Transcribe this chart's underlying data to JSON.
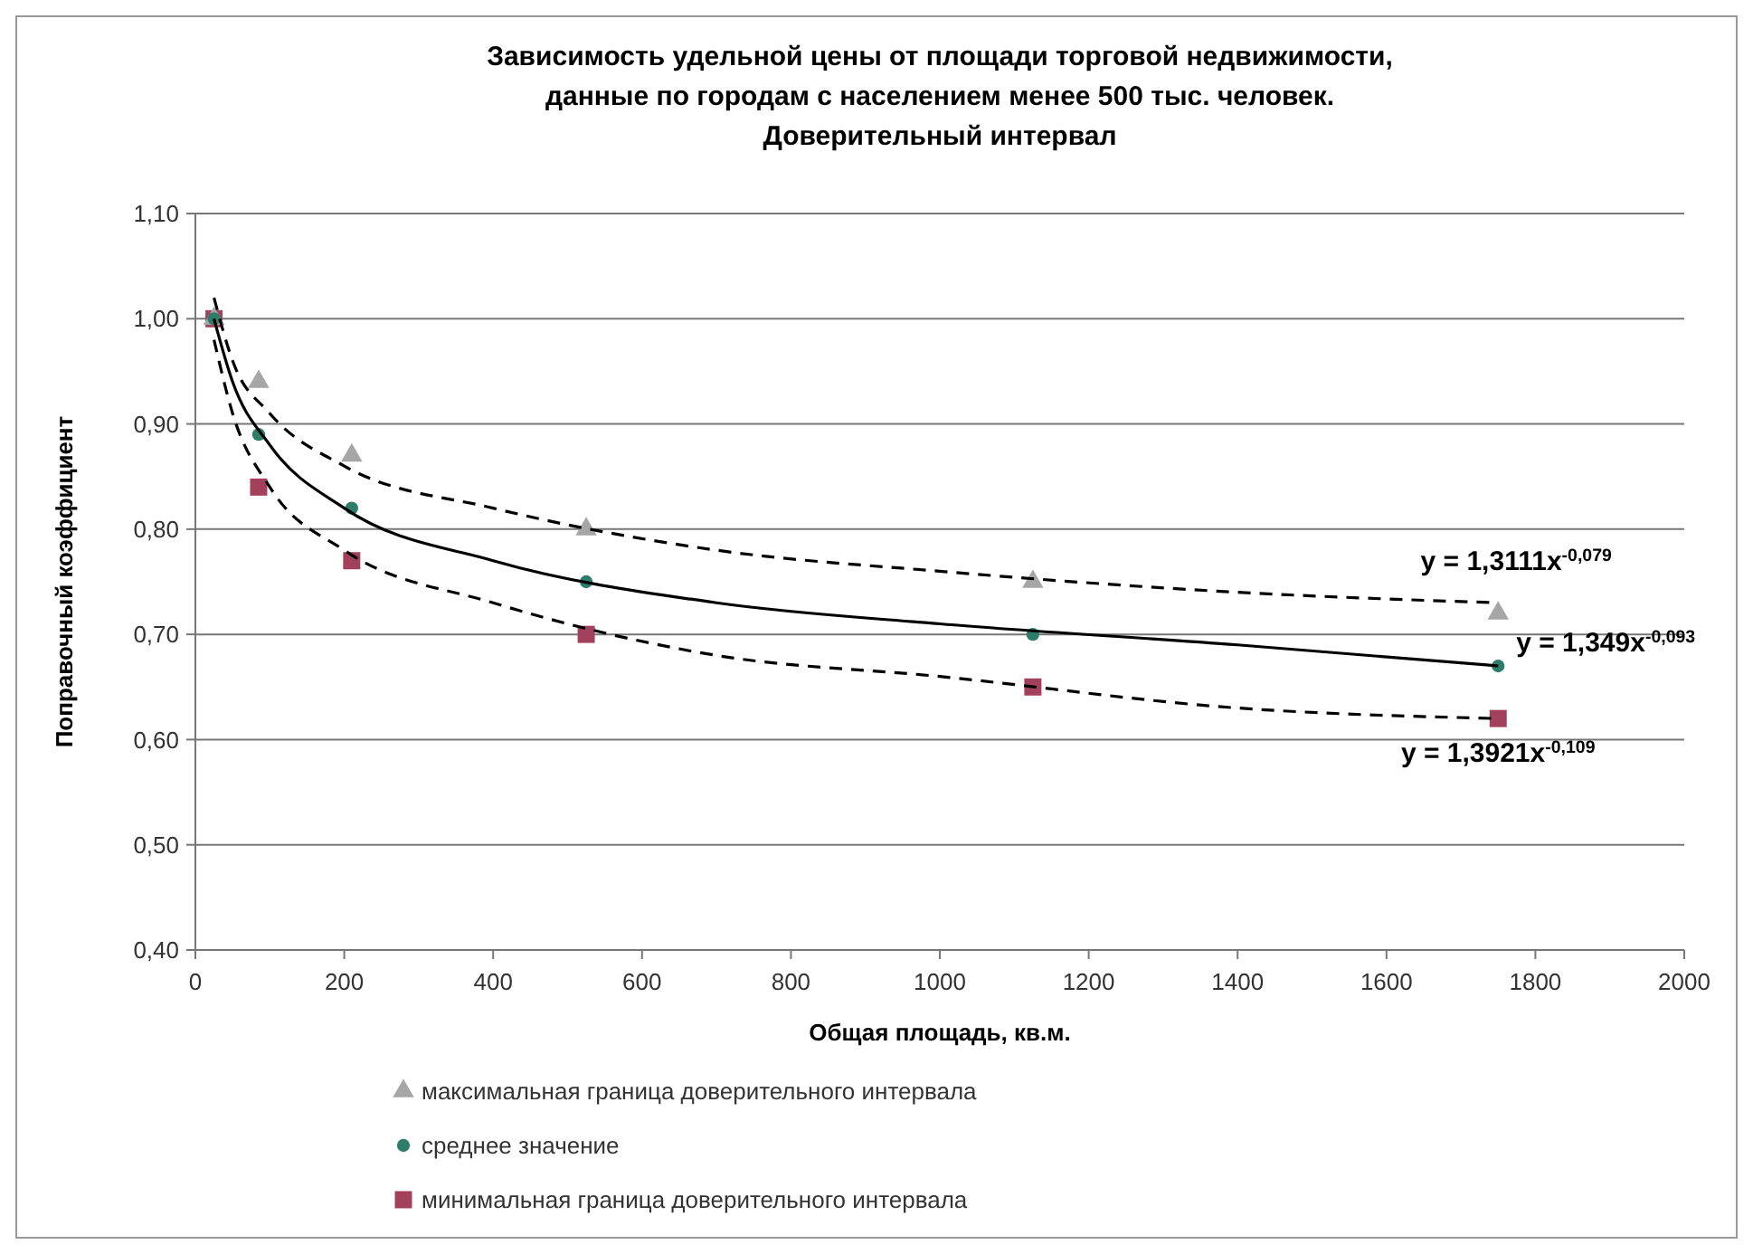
{
  "chart_data": {
    "type": "scatter",
    "title": "Зависимость удельной цены от площади торговой недвижимости,\nданные по городам с населением менее 500 тыс. человек.\nДоверительный интервал",
    "xlabel": "Общая площадь, кв.м.",
    "ylabel": "Поправочный коэффициент",
    "xlim": [
      0,
      2000
    ],
    "xticks": [
      0,
      200,
      400,
      600,
      800,
      1000,
      1200,
      1400,
      1600,
      1800,
      2000
    ],
    "ylim": [
      0.4,
      1.1
    ],
    "yticks": [
      {
        "value": 0.4,
        "label": "0,40"
      },
      {
        "value": 0.5,
        "label": "0,50"
      },
      {
        "value": 0.6,
        "label": "0,60"
      },
      {
        "value": 0.7,
        "label": "0,70"
      },
      {
        "value": 0.8,
        "label": "0,80"
      },
      {
        "value": 0.9,
        "label": "0,90"
      },
      {
        "value": 1.0,
        "label": "1,00"
      },
      {
        "value": 1.1,
        "label": "1,10"
      }
    ],
    "grid": "y",
    "legend": "bottom",
    "x": [
      25,
      85,
      210,
      525,
      1125,
      1750
    ],
    "series": [
      {
        "name": "максимальная граница доверительного интервала",
        "color": "#a6a6a6",
        "marker": "triangle",
        "values": [
          1.0,
          0.94,
          0.87,
          0.8,
          0.75,
          0.72
        ]
      },
      {
        "name": "среднее значение",
        "color": "#2e7d6b",
        "marker": "circle",
        "values": [
          1.0,
          0.89,
          0.82,
          0.75,
          0.7,
          0.67
        ]
      },
      {
        "name": "минимальная граница доверительного интервала",
        "color": "#a3405c",
        "marker": "square",
        "values": [
          1.0,
          0.84,
          0.77,
          0.7,
          0.65,
          0.62
        ]
      },
      {
        "type": "line",
        "color": "#000000",
        "line_style": "dashed",
        "x": [
          25,
          50,
          100,
          200,
          400,
          700,
          1000,
          1400,
          1750
        ],
        "values": [
          1.02,
          0.96,
          0.91,
          0.86,
          0.82,
          0.78,
          0.76,
          0.74,
          0.73
        ]
      },
      {
        "type": "line",
        "color": "#000000",
        "line_style": "solid",
        "x": [
          25,
          50,
          100,
          200,
          400,
          700,
          1000,
          1400,
          1750
        ],
        "values": [
          1.0,
          0.94,
          0.88,
          0.82,
          0.77,
          0.73,
          0.71,
          0.69,
          0.67
        ]
      },
      {
        "type": "line",
        "color": "#000000",
        "line_style": "dashed",
        "x": [
          25,
          50,
          100,
          200,
          400,
          700,
          1000,
          1400,
          1750
        ],
        "values": [
          0.98,
          0.91,
          0.84,
          0.78,
          0.73,
          0.68,
          0.66,
          0.63,
          0.62
        ]
      }
    ],
    "annotations": [
      "y = 1,3111x$^{-0,079}$",
      "y = 1,349x$^{-0,093}$",
      "y = 1,3921x$^{-0,109}$"
    ]
  }
}
